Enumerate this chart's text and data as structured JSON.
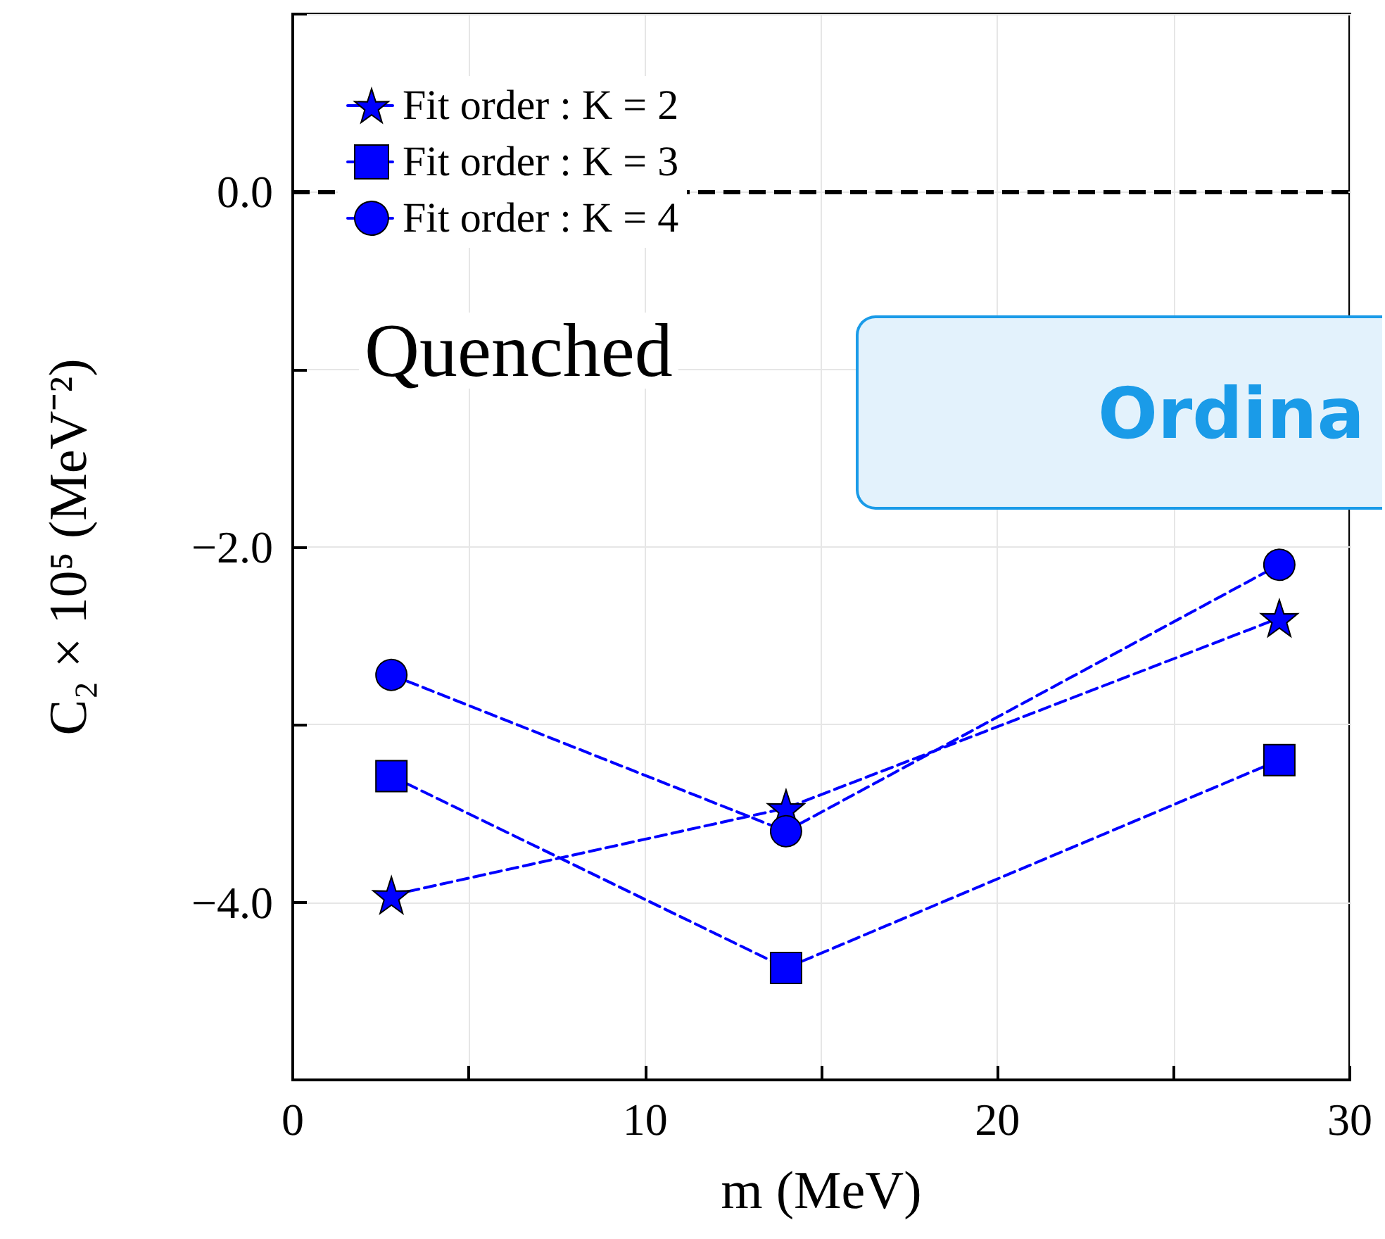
{
  "chart_data": {
    "type": "line",
    "xlabel": "m (MeV)",
    "ylabel": "C₂ × 10⁵ (MeV⁻²)",
    "x": [
      2.8,
      14,
      28
    ],
    "series": [
      {
        "name": "Fit order : K = 2",
        "color": "#0000ff",
        "marker": "star",
        "values": [
          -3.96,
          -3.47,
          -2.4
        ]
      },
      {
        "name": "Fit order : K = 3",
        "color": "#0000ff",
        "marker": "square",
        "values": [
          -3.29,
          -4.37,
          -3.2
        ]
      },
      {
        "name": "Fit order : K = 4",
        "color": "#0000ff",
        "marker": "circle",
        "values": [
          -2.72,
          -3.6,
          -2.1
        ]
      }
    ],
    "line_style": "dashed",
    "xlim": [
      0,
      30
    ],
    "xticks": [
      0,
      {
        "value": 5,
        "label": null
      },
      10,
      {
        "value": 15,
        "label": null
      },
      20,
      {
        "value": 25,
        "label": null
      },
      30
    ],
    "ylim": [
      -5,
      1
    ],
    "yticks": [
      {
        "value": -5,
        "label": null
      },
      {
        "value": -4,
        "label": "−4.0"
      },
      {
        "value": -3,
        "label": null
      },
      {
        "value": -2,
        "label": "−2.0"
      },
      {
        "value": -1,
        "label": null
      },
      {
        "value": 0,
        "label": "0.0"
      },
      {
        "value": 1,
        "label": null
      }
    ],
    "ref_lines": [
      {
        "axis": "y",
        "value": 0,
        "label": null,
        "color": "#000000",
        "line_style": "dashed"
      }
    ],
    "grid": true,
    "legend": "top left",
    "annotations": [
      "Quenched",
      "Ordina"
    ]
  }
}
